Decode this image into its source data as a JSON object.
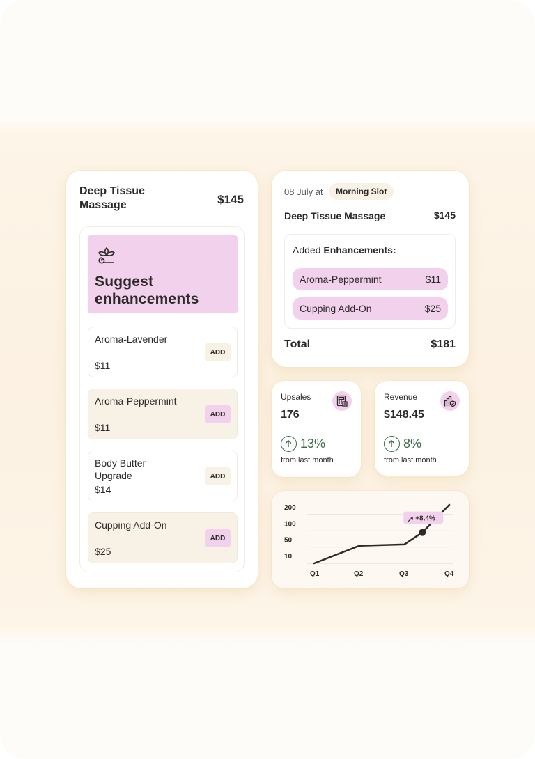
{
  "booking_card": {
    "title": "Deep Tissue Massage",
    "price": "$145",
    "suggest_title": "Suggest enhancements",
    "suggest_icon": "lotus-icon",
    "enhancements": [
      {
        "name": "Aroma-Lavender",
        "price": "$11",
        "button": "ADD"
      },
      {
        "name": "Aroma-Peppermint",
        "price": "$11",
        "button": "ADD"
      },
      {
        "name": "Body Butter Upgrade",
        "price": "$14",
        "button": "ADD"
      },
      {
        "name": "Cupping Add-On",
        "price": "$25",
        "button": "ADD"
      }
    ]
  },
  "summary": {
    "date": "08 July at",
    "slot": "Morning Slot",
    "service": "Deep Tissue Massage",
    "service_price": "$145",
    "added_prefix": "Added ",
    "added_bold": "Enhancements:",
    "added": [
      {
        "name": "Aroma-Peppermint",
        "price": "$11"
      },
      {
        "name": "Cupping Add-On",
        "price": "$25"
      }
    ],
    "total_label": "Total",
    "total_value": "$181"
  },
  "stats": [
    {
      "label": "Upsales",
      "value": "176",
      "change": "13%",
      "sub": "from last month",
      "icon": "calculator-icon",
      "trend_icon": "arrow-up-icon"
    },
    {
      "label": "Revenue",
      "value": "$148.45",
      "change": "8%",
      "sub": "from last month",
      "icon": "products-shield-icon",
      "trend_icon": "arrow-up-icon"
    }
  ],
  "colors": {
    "accent_pink": "#f2d1ec",
    "cream": "#f7f1e6",
    "positive": "#3a6a4a",
    "text": "#2c2a28"
  },
  "chart_data": {
    "type": "line",
    "categories": [
      "Q1",
      "Q2",
      "Q3",
      "Q4"
    ],
    "y_ticks": [
      "200",
      "100",
      "50",
      "10"
    ],
    "y_scale": "categorical-ticks",
    "grid": true,
    "series": [
      {
        "points": [
          [
            1,
            10
          ],
          [
            2,
            54
          ],
          [
            3,
            58
          ],
          [
            3.4,
            95
          ],
          [
            4,
            200
          ]
        ]
      }
    ],
    "highlight": {
      "x": 3.4,
      "y": 95,
      "label": "+8.4%"
    },
    "xlabel": "",
    "ylabel": ""
  }
}
